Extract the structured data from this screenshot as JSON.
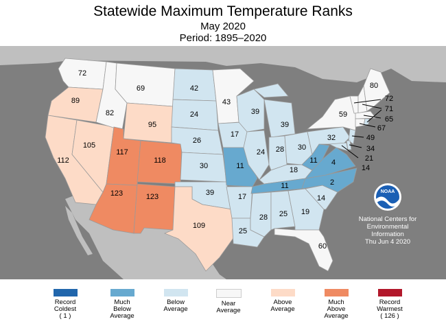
{
  "title": "Statewide Maximum Temperature Ranks",
  "subtitle": "May 2020",
  "period": "Period: 1895–2020",
  "credit": [
    "National Centers for",
    "Environmental",
    "Information",
    "Thu Jun  4 2020"
  ],
  "logo_text": "NOAA",
  "colors": {
    "record_coldest": "#2166ac",
    "much_below": "#67a9cf",
    "below": "#d1e5f0",
    "near": "#f7f7f7",
    "above": "#fddbc7",
    "much_above": "#ef8a62",
    "record_warmest": "#b2182b"
  },
  "legend": [
    {
      "lines": [
        "Record",
        "Coldest",
        "( 1 )"
      ],
      "color_key": "record_coldest"
    },
    {
      "lines": [
        "Much",
        "Below",
        "Average"
      ],
      "color_key": "much_below"
    },
    {
      "lines": [
        "Below",
        "Average"
      ],
      "color_key": "below"
    },
    {
      "lines": [
        "Near",
        "Average"
      ],
      "color_key": "near"
    },
    {
      "lines": [
        "Above",
        "Average"
      ],
      "color_key": "above"
    },
    {
      "lines": [
        "Much",
        "Above",
        "Average"
      ],
      "color_key": "much_above"
    },
    {
      "lines": [
        "Record",
        "Warmest",
        "( 126 )"
      ],
      "color_key": "record_warmest"
    }
  ],
  "states": [
    {
      "id": "WA",
      "rank": "72",
      "category": "near"
    },
    {
      "id": "OR",
      "rank": "89",
      "category": "above"
    },
    {
      "id": "CA",
      "rank": "112",
      "category": "above"
    },
    {
      "id": "NV",
      "rank": "105",
      "category": "above"
    },
    {
      "id": "ID",
      "rank": "82",
      "category": "near"
    },
    {
      "id": "MT",
      "rank": "69",
      "category": "near"
    },
    {
      "id": "WY",
      "rank": "95",
      "category": "above"
    },
    {
      "id": "UT",
      "rank": "117",
      "category": "much_above"
    },
    {
      "id": "CO",
      "rank": "118",
      "category": "much_above"
    },
    {
      "id": "AZ",
      "rank": "123",
      "category": "much_above"
    },
    {
      "id": "NM",
      "rank": "123",
      "category": "much_above"
    },
    {
      "id": "ND",
      "rank": "42",
      "category": "below"
    },
    {
      "id": "SD",
      "rank": "24",
      "category": "below"
    },
    {
      "id": "NE",
      "rank": "26",
      "category": "below"
    },
    {
      "id": "KS",
      "rank": "30",
      "category": "below"
    },
    {
      "id": "OK",
      "rank": "39",
      "category": "below"
    },
    {
      "id": "TX",
      "rank": "109",
      "category": "above"
    },
    {
      "id": "MN",
      "rank": "43",
      "category": "near"
    },
    {
      "id": "IA",
      "rank": "17",
      "category": "below"
    },
    {
      "id": "MO",
      "rank": "11",
      "category": "much_below"
    },
    {
      "id": "AR",
      "rank": "17",
      "category": "below"
    },
    {
      "id": "LA",
      "rank": "25",
      "category": "below"
    },
    {
      "id": "WI",
      "rank": "39",
      "category": "below"
    },
    {
      "id": "IL",
      "rank": "24",
      "category": "below"
    },
    {
      "id": "MI",
      "rank": "39",
      "category": "below"
    },
    {
      "id": "IN",
      "rank": "28",
      "category": "below"
    },
    {
      "id": "OH",
      "rank": "30",
      "category": "below"
    },
    {
      "id": "KY",
      "rank": "18",
      "category": "below"
    },
    {
      "id": "TN",
      "rank": "11",
      "category": "much_below"
    },
    {
      "id": "MS",
      "rank": "28",
      "category": "below"
    },
    {
      "id": "AL",
      "rank": "25",
      "category": "below"
    },
    {
      "id": "GA",
      "rank": "19",
      "category": "below"
    },
    {
      "id": "FL",
      "rank": "60",
      "category": "near"
    },
    {
      "id": "SC",
      "rank": "14",
      "category": "below"
    },
    {
      "id": "NC",
      "rank": "2",
      "category": "much_below"
    },
    {
      "id": "VA",
      "rank": "4",
      "category": "much_below"
    },
    {
      "id": "WV",
      "rank": "11",
      "category": "much_below"
    },
    {
      "id": "PA",
      "rank": "32",
      "category": "below"
    },
    {
      "id": "NY",
      "rank": "59",
      "category": "near"
    },
    {
      "id": "ME",
      "rank": "80",
      "category": "near"
    },
    {
      "id": "NH",
      "rank": "72",
      "category": "near"
    },
    {
      "id": "VT",
      "rank": "71",
      "category": "near"
    },
    {
      "id": "MA",
      "rank": "65",
      "category": "near"
    },
    {
      "id": "CT",
      "rank": "67",
      "category": "near"
    },
    {
      "id": "NJ",
      "rank": "49",
      "category": "below"
    },
    {
      "id": "DE",
      "rank": "34",
      "category": "below"
    },
    {
      "id": "MD",
      "rank": "21",
      "category": "below"
    },
    {
      "id": "RI",
      "rank": "14",
      "category": "below"
    }
  ]
}
